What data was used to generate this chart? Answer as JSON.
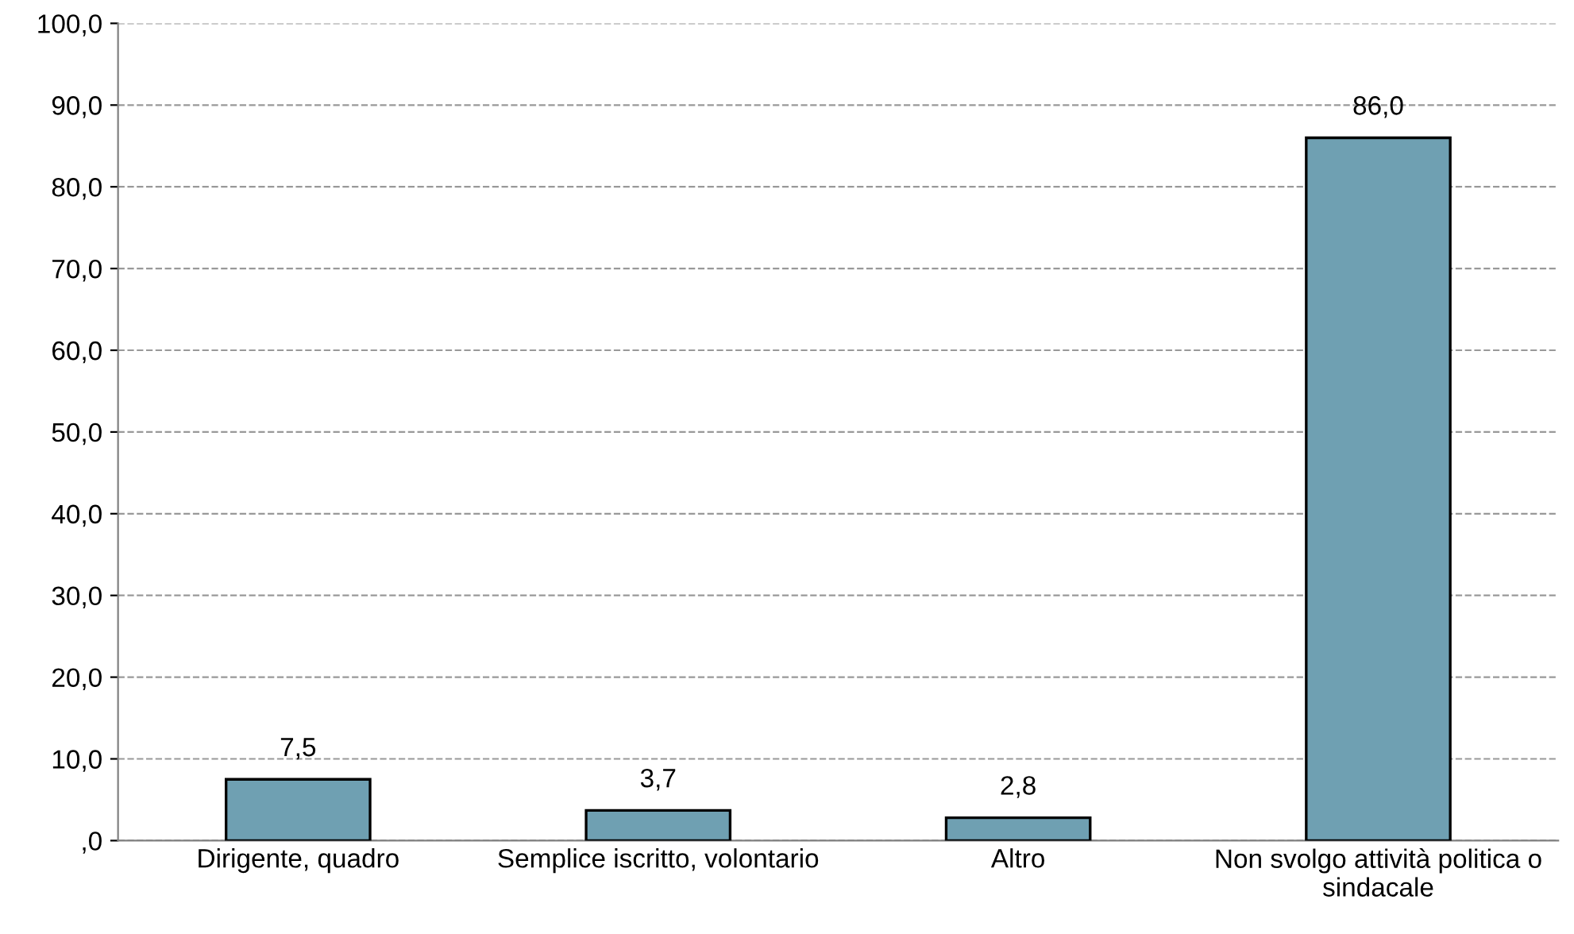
{
  "chart_data": {
    "type": "bar",
    "categories": [
      "Dirigente, quadro",
      "Semplice iscritto, volontario",
      "Altro",
      "Non svolgo attività politica o sindacale"
    ],
    "values": [
      7.5,
      3.7,
      2.8,
      86.0
    ],
    "value_labels": [
      "7,5",
      "3,7",
      "2,8",
      "86,0"
    ],
    "color": "#6fa0b2",
    "ylim": [
      0,
      100
    ],
    "yticks": [
      {
        "value": 0,
        "label": ",0"
      },
      {
        "value": 10,
        "label": "10,0"
      },
      {
        "value": 20,
        "label": "20,0"
      },
      {
        "value": 30,
        "label": "30,0"
      },
      {
        "value": 40,
        "label": "40,0"
      },
      {
        "value": 50,
        "label": "50,0"
      },
      {
        "value": 60,
        "label": "60,0"
      },
      {
        "value": 70,
        "label": "70,0"
      },
      {
        "value": 80,
        "label": "80,0"
      },
      {
        "value": 90,
        "label": "90,0"
      },
      {
        "value": 100,
        "label": "100,0"
      }
    ],
    "grid": "y"
  }
}
